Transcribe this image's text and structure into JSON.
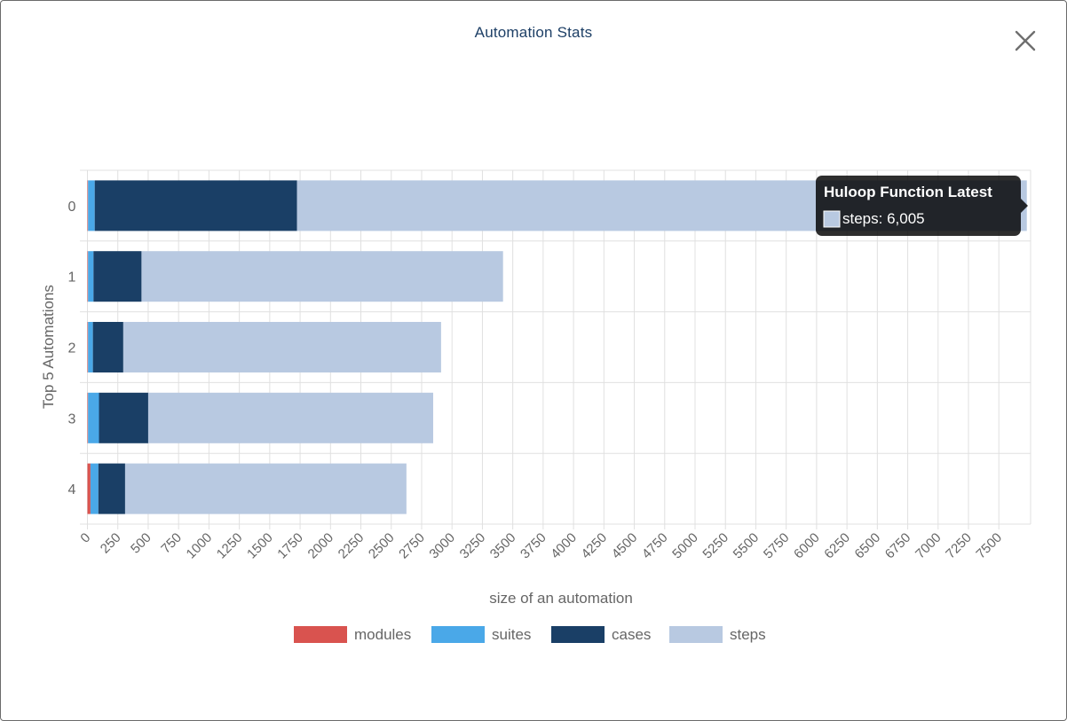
{
  "modal": {
    "title": "Automation Stats"
  },
  "icons": {
    "close": "close-icon"
  },
  "chart_data": {
    "type": "bar",
    "orientation": "horizontal",
    "stacked": true,
    "title": "",
    "xlabel": "size of an automation",
    "ylabel": "Top 5 Automations",
    "xlim": [
      0,
      7750
    ],
    "x_ticks": [
      "0",
      "250",
      "500",
      "750",
      "1000",
      "1250",
      "1500",
      "1750",
      "2000",
      "2250",
      "2500",
      "2750",
      "3000",
      "3250",
      "3500",
      "3750",
      "4000",
      "4250",
      "4500",
      "4750",
      "5000",
      "5250",
      "5500",
      "5750",
      "6000",
      "6250",
      "6500",
      "6750",
      "7000",
      "7250",
      "7500"
    ],
    "categories": [
      "0",
      "1",
      "2",
      "3",
      "4"
    ],
    "series": [
      {
        "name": "modules",
        "color": "#d9534f",
        "values": [
          5,
          5,
          5,
          5,
          25
        ]
      },
      {
        "name": "suites",
        "color": "#4aa8e8",
        "values": [
          55,
          45,
          40,
          90,
          65
        ]
      },
      {
        "name": "cases",
        "color": "#1a3f66",
        "values": [
          1665,
          395,
          250,
          405,
          220
        ]
      },
      {
        "name": "steps",
        "color": "#b8c9e1",
        "values": [
          6005,
          2975,
          2615,
          2345,
          2315
        ]
      }
    ],
    "grid": true,
    "legend": "bottom",
    "tooltip": {
      "title": "Huloop Function Latest",
      "series": "steps",
      "label": "steps: 6,005",
      "category": "0"
    }
  }
}
